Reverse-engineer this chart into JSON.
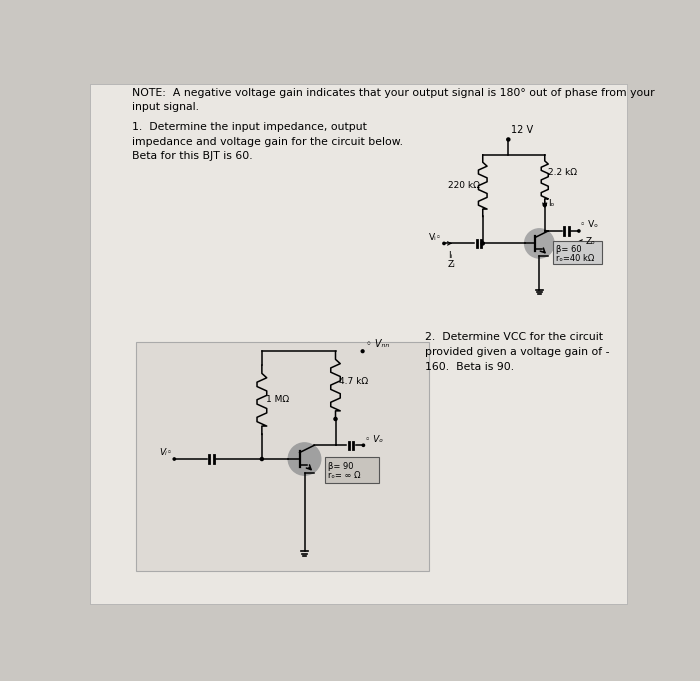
{
  "bg_color": "#cac7c2",
  "paper_color": "#eae7e2",
  "note_text": "NOTE:  A negative voltage gain indicates that your output signal is 180° out of phase from your\ninput signal.",
  "q1_text": "1.  Determine the input impedance, output\nimpedance and voltage gain for the circuit below.\nBeta for this BJT is 60.",
  "q2_text": "2.  Determine VCC for the circuit\nprovided given a voltage gain of -\n160.  Beta is 90.",
  "c1_vcc": "12 V",
  "c1_r220": "220 kΩ",
  "c1_r22": "2.2 kΩ",
  "c1_io": "Iₒ",
  "c1_vi": "Vᵢ◦",
  "c1_vo": "◦ Vₒ",
  "c1_zo": "Zₒ",
  "c1_ii": "Iᵢ",
  "c1_zi": "Zᵢ",
  "c1_beta": "β= 60",
  "c1_ro": "rₒ=40 kΩ",
  "c2_vcc": "◦ Vₙₙ",
  "c2_r1m": "1 MΩ",
  "c2_r47": "4.7 kΩ",
  "c2_vi": "Vᵢ◦",
  "c2_vo": "◦ Vₒ",
  "c2_beta": "β= 90",
  "c2_ro": "rₒ= ∞ Ω"
}
